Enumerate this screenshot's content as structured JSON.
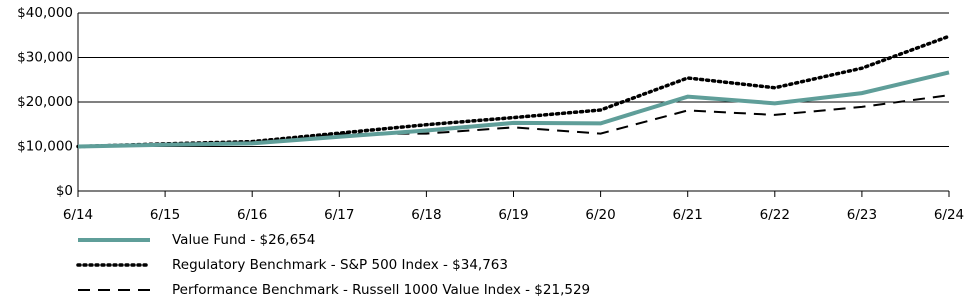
{
  "chart_data": {
    "type": "line",
    "categories": [
      "6/14",
      "6/15",
      "6/16",
      "6/17",
      "6/18",
      "6/19",
      "6/20",
      "6/21",
      "6/22",
      "6/23",
      "6/24"
    ],
    "series": [
      {
        "name": "Value Fund - $26,654",
        "color": "#5f9e99",
        "dash": "solid",
        "values": [
          10000,
          10400,
          10700,
          12200,
          13600,
          15300,
          15200,
          21200,
          19700,
          22000,
          26654
        ]
      },
      {
        "name": "Regulatory Benchmark - S&P 500 Index - $34,763",
        "color": "#000000",
        "dash": "dotted",
        "values": [
          10000,
          10600,
          11100,
          13000,
          14900,
          16500,
          18200,
          25400,
          23200,
          27600,
          34763
        ]
      },
      {
        "name": "Performance Benchmark - Russell 1000 Value Index - $21,529",
        "color": "#000000",
        "dash": "dashed",
        "values": [
          10000,
          10300,
          10600,
          12800,
          12900,
          14300,
          12900,
          18100,
          17100,
          18900,
          21529
        ]
      }
    ],
    "ylim": [
      0,
      40000
    ],
    "yticks": [
      {
        "value": 0,
        "label": "$0"
      },
      {
        "value": 10000,
        "label": "$10,000"
      },
      {
        "value": 20000,
        "label": "$20,000"
      },
      {
        "value": 30000,
        "label": "$30,000"
      },
      {
        "value": 40000,
        "label": "$40,000"
      }
    ],
    "grid": true
  }
}
